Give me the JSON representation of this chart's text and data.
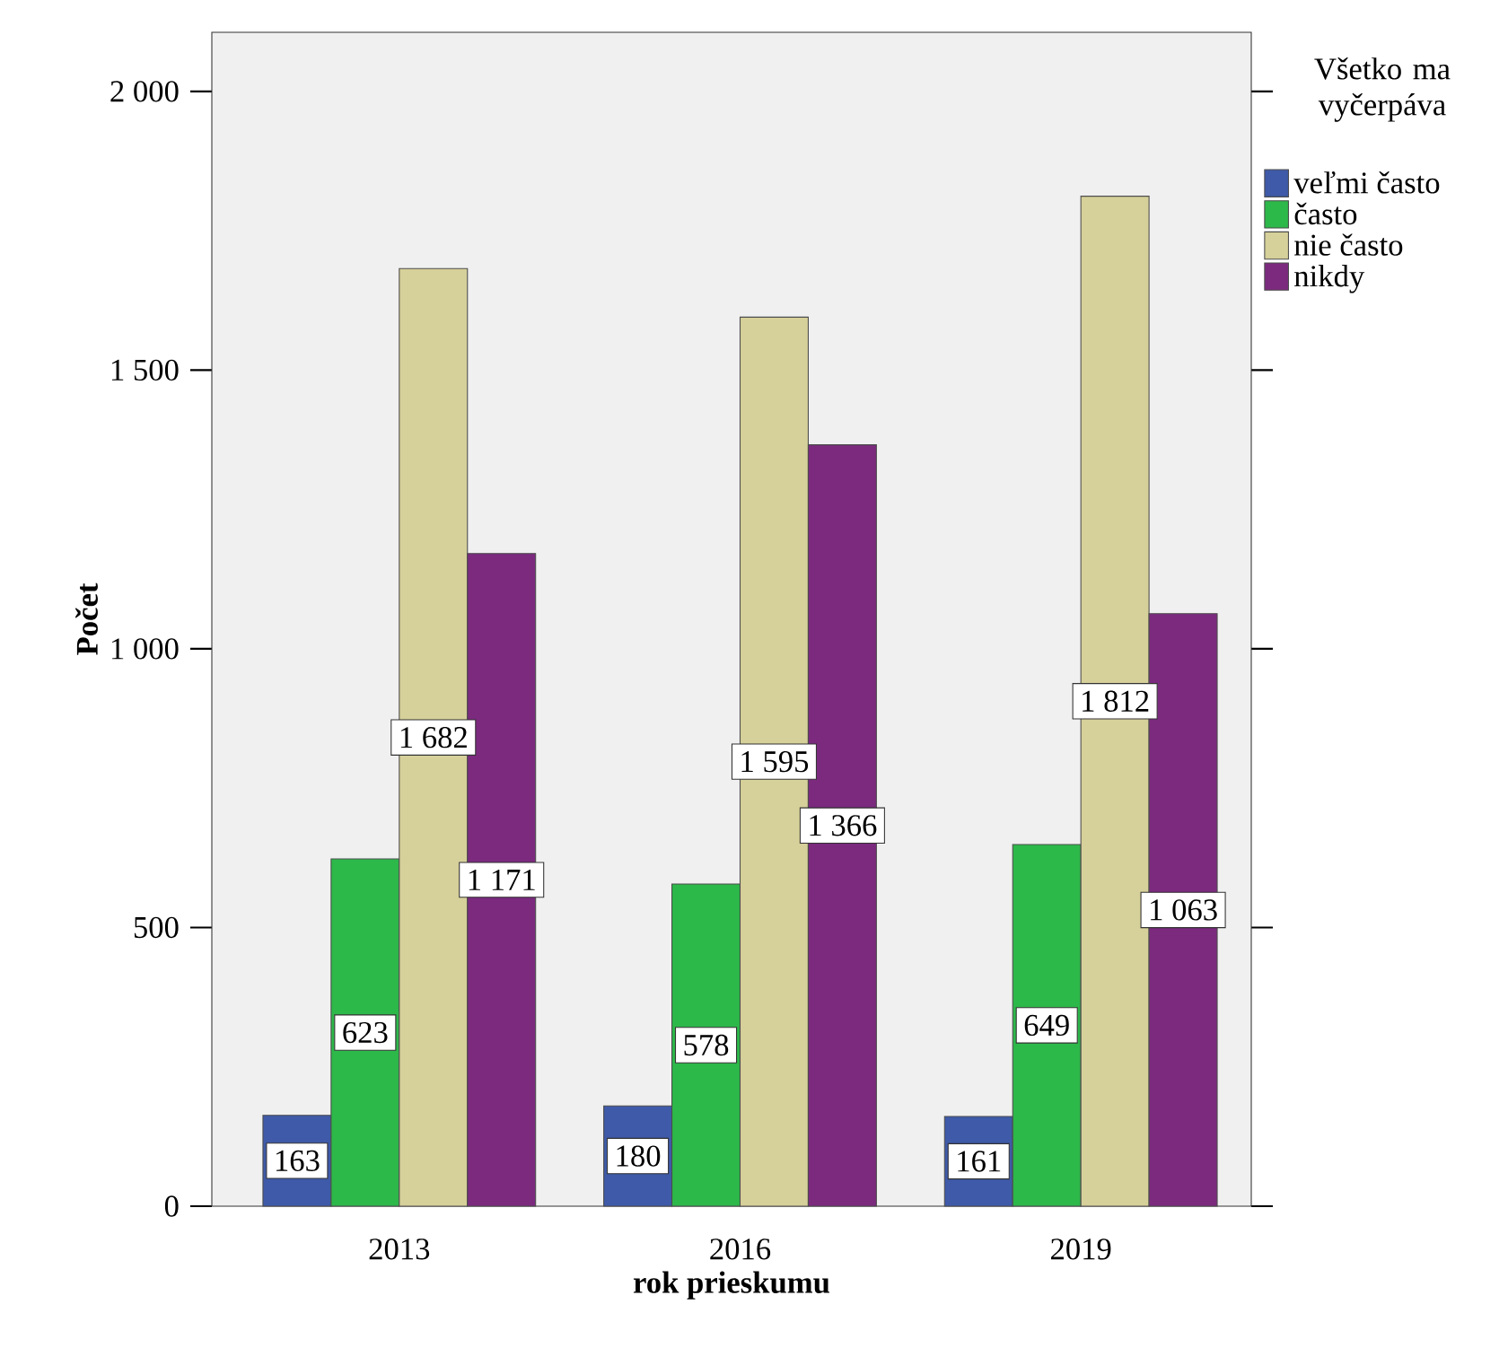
{
  "chart_data": {
    "type": "bar",
    "xlabel": "rok prieskumu",
    "ylabel": "Počet",
    "legend_title": "Všetko ma vyčerpáva",
    "legend": "right",
    "grid": false,
    "categories": [
      "2013",
      "2016",
      "2019"
    ],
    "series": [
      {
        "name": "veľmi často",
        "color": "#3e5aa8",
        "values": [
          163,
          180,
          161
        ],
        "value_labels": [
          "163",
          "180",
          "161"
        ]
      },
      {
        "name": "často",
        "color": "#2db84a",
        "values": [
          623,
          578,
          649
        ],
        "value_labels": [
          "623",
          "578",
          "649"
        ]
      },
      {
        "name": "nie často",
        "color": "#d6d09a",
        "values": [
          1682,
          1595,
          1812
        ],
        "value_labels": [
          "1 682",
          "1 595",
          "1 812"
        ]
      },
      {
        "name": "nikdy",
        "color": "#7b2a7e",
        "values": [
          1171,
          1366,
          1063
        ],
        "value_labels": [
          "1 171",
          "1 366",
          "1 063"
        ]
      }
    ],
    "ylim": [
      0,
      2106
    ],
    "yticks": [
      {
        "value": 0,
        "label": "0"
      },
      {
        "value": 500,
        "label": "500"
      },
      {
        "value": 1000,
        "label": "1 000"
      },
      {
        "value": 1500,
        "label": "1 500"
      },
      {
        "value": 2000,
        "label": "2 000"
      }
    ]
  }
}
